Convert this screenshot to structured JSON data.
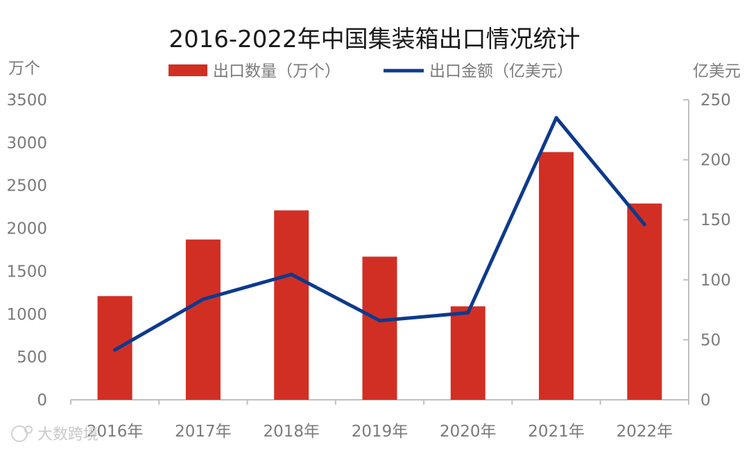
{
  "chart_data": {
    "type": "bar",
    "title": "2016-2022年中国集装箱出口情况统计",
    "categories": [
      "2016年",
      "2017年",
      "2018年",
      "2019年",
      "2020年",
      "2021年",
      "2022年"
    ],
    "y_left": {
      "unit": "万个",
      "range": [
        0,
        3500
      ],
      "ticks": [
        "0",
        "500",
        "1000",
        "1500",
        "2000",
        "2500",
        "3000",
        "3500"
      ]
    },
    "y_right": {
      "unit": "亿美元",
      "range": [
        0,
        250
      ],
      "ticks": [
        "0",
        "50",
        "100",
        "150",
        "200",
        "250"
      ]
    },
    "series": [
      {
        "name": "出口数量（万个）",
        "type": "bar",
        "axis": "left",
        "color": "#d12f24",
        "values": [
          1210,
          1870,
          2210,
          1670,
          1090,
          2890,
          2290
        ]
      },
      {
        "name": "出口金额（亿美元）",
        "type": "line",
        "axis": "right",
        "color": "#0d3a8c",
        "values": [
          41.5,
          83.8,
          104.5,
          66,
          72.5,
          235,
          146
        ]
      }
    ],
    "legend_position": "top",
    "grid": false
  },
  "watermark": {
    "text": "大数跨境"
  }
}
